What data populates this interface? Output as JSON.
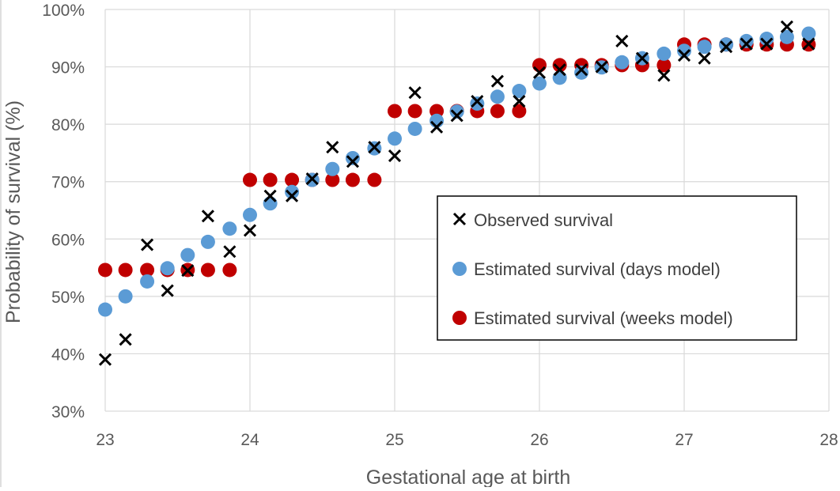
{
  "chart_data": {
    "type": "scatter",
    "title": "",
    "xlabel": "Gestational age at birth",
    "ylabel": "Probability of survival (%)",
    "xlim": [
      23,
      28
    ],
    "ylim": [
      30,
      100
    ],
    "x_ticks": [
      "23",
      "24",
      "25",
      "26",
      "27",
      "28"
    ],
    "y_ticks": [
      "30%",
      "40%",
      "50%",
      "60%",
      "70%",
      "80%",
      "90%",
      "100%"
    ],
    "grid": true,
    "legend_position": "right-middle",
    "series": [
      {
        "name": "Observed survival",
        "marker": "x",
        "color": "#000000",
        "x": [
          23.0,
          23.14,
          23.29,
          23.43,
          23.57,
          23.71,
          23.86,
          24.0,
          24.14,
          24.29,
          24.43,
          24.57,
          24.71,
          24.86,
          25.0,
          25.14,
          25.29,
          25.43,
          25.57,
          25.71,
          25.86,
          26.0,
          26.14,
          26.29,
          26.43,
          26.57,
          26.71,
          26.86,
          27.0,
          27.14,
          27.29,
          27.43,
          27.57,
          27.71,
          27.86
        ],
        "y": [
          39,
          42.5,
          59,
          51,
          54.5,
          64,
          57.8,
          61.5,
          67.5,
          67.5,
          70.5,
          76,
          73.5,
          76,
          74.5,
          85.5,
          79.5,
          81.5,
          84,
          87.5,
          84,
          89,
          89.5,
          89.5,
          90,
          94.5,
          91.5,
          88.5,
          92,
          91.5,
          93.5,
          94,
          94,
          97,
          94
        ]
      },
      {
        "name": "Estimated survival (days model)",
        "marker": "circle",
        "color": "#5B9BD5",
        "x": [
          23.0,
          23.14,
          23.29,
          23.43,
          23.57,
          23.71,
          23.86,
          24.0,
          24.14,
          24.29,
          24.43,
          24.57,
          24.71,
          24.86,
          25.0,
          25.14,
          25.29,
          25.43,
          25.57,
          25.71,
          25.86,
          26.0,
          26.14,
          26.29,
          26.43,
          26.57,
          26.71,
          26.86,
          27.0,
          27.14,
          27.29,
          27.43,
          27.57,
          27.71,
          27.86
        ],
        "y": [
          47.7,
          50.0,
          52.6,
          54.9,
          57.2,
          59.5,
          61.8,
          64.2,
          66.2,
          68.2,
          70.3,
          72.2,
          74.1,
          75.8,
          77.5,
          79.2,
          80.6,
          82.2,
          83.6,
          84.8,
          85.8,
          87.1,
          88.1,
          89.0,
          89.9,
          90.8,
          91.5,
          92.3,
          92.8,
          93.5,
          93.9,
          94.5,
          94.9,
          95.2,
          95.8
        ]
      },
      {
        "name": "Estimated survival (weeks model)",
        "marker": "circle",
        "color": "#C00000",
        "x": [
          23.0,
          23.14,
          23.29,
          23.43,
          23.57,
          23.71,
          23.86,
          24.0,
          24.14,
          24.29,
          24.43,
          24.57,
          24.71,
          24.86,
          25.0,
          25.14,
          25.29,
          25.43,
          25.57,
          25.71,
          25.86,
          26.0,
          26.14,
          26.29,
          26.43,
          26.57,
          26.71,
          26.86,
          27.0,
          27.14,
          27.29,
          27.43,
          27.57,
          27.71,
          27.86
        ],
        "y": [
          54.6,
          54.6,
          54.6,
          54.6,
          54.6,
          54.6,
          54.6,
          70.3,
          70.3,
          70.3,
          70.3,
          70.3,
          70.3,
          70.3,
          82.3,
          82.3,
          82.3,
          82.3,
          82.3,
          82.3,
          82.3,
          90.3,
          90.3,
          90.3,
          90.3,
          90.3,
          90.3,
          90.3,
          93.9,
          93.9,
          93.9,
          93.9,
          93.9,
          93.9,
          93.9
        ]
      }
    ]
  }
}
